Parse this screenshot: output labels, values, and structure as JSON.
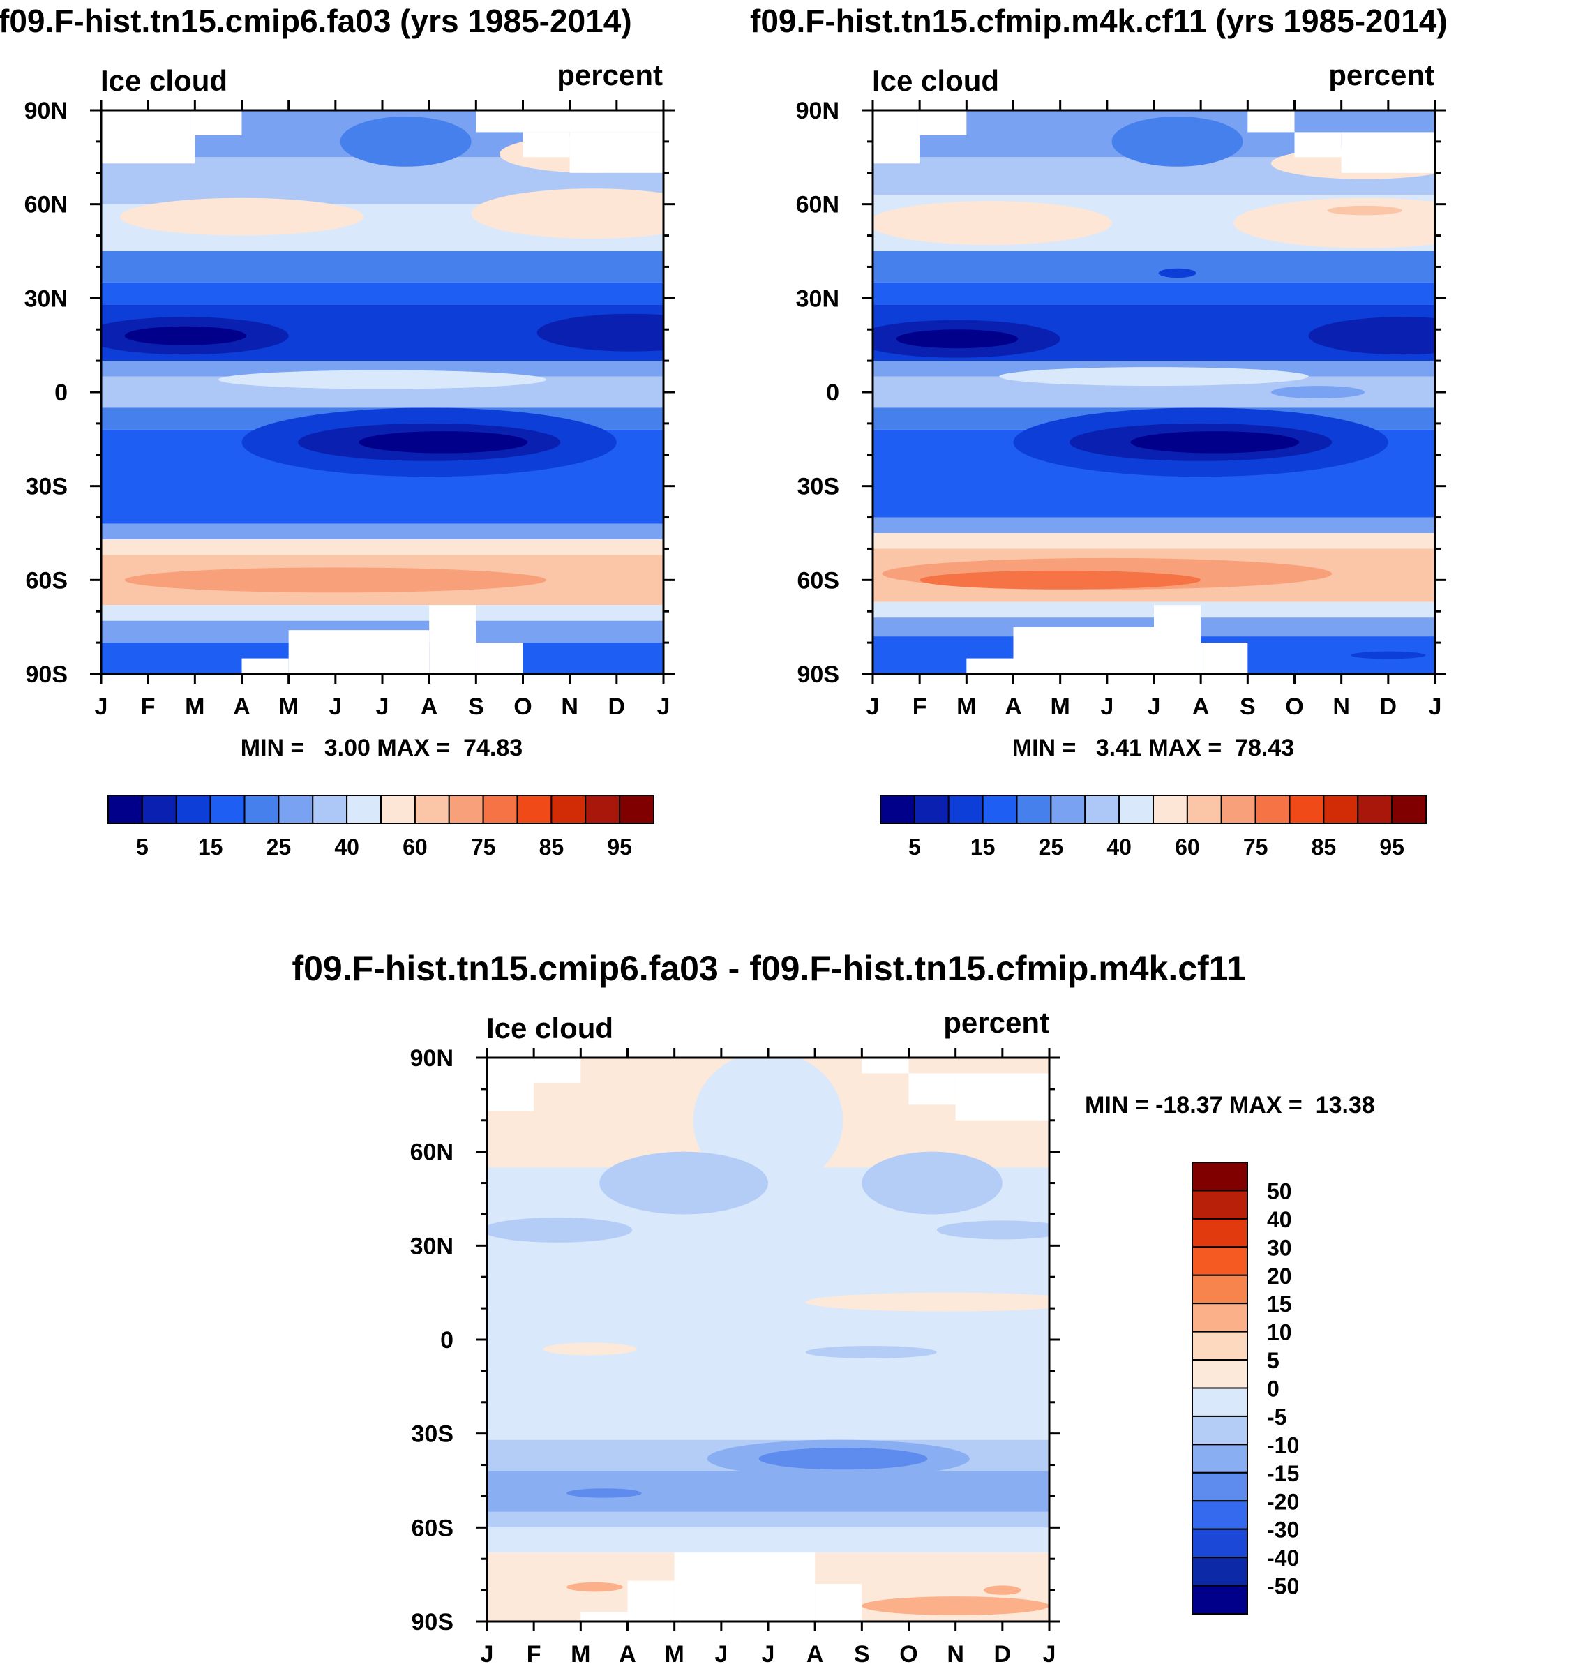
{
  "chart_data": [
    {
      "type": "heatmap",
      "title": "f09.F-hist.tn15.cmip6.fa03 (yrs 1985-2014)",
      "left_label": "Ice cloud",
      "right_label": "percent",
      "x_tick_labels": [
        "J",
        "F",
        "M",
        "A",
        "M",
        "J",
        "J",
        "A",
        "S",
        "O",
        "N",
        "D",
        "J"
      ],
      "y_tick_labels": [
        "90N",
        "60N",
        "30N",
        "0",
        "30S",
        "60S",
        "90S"
      ],
      "min_max_text": "MIN =   3.00 MAX =  74.83",
      "min": 3.0,
      "max": 74.83,
      "colorbar_levels": [
        "5",
        "15",
        "25",
        "40",
        "60",
        "75",
        "85",
        "95"
      ],
      "colorbar_colors": [
        "#00008b",
        "#0a20b0",
        "#0d3fd8",
        "#1f5ef2",
        "#4680ec",
        "#7aa2f2",
        "#adc7f7",
        "#d9e9fb",
        "#fde6d6",
        "#fbc6a8",
        "#f8a07a",
        "#f57344",
        "#ef4a17",
        "#d22c06",
        "#a8170a",
        "#800000"
      ],
      "bands": [
        {
          "lat0": 90,
          "lat1": 75,
          "color": "#7aa2f2"
        },
        {
          "lat0": 75,
          "lat1": 60,
          "color": "#adc7f7"
        },
        {
          "lat0": 60,
          "lat1": 45,
          "color": "#d9e9fb"
        },
        {
          "lat0": 45,
          "lat1": 35,
          "color": "#4680ec"
        },
        {
          "lat0": 35,
          "lat1": 28,
          "color": "#1f5ef2"
        },
        {
          "lat0": 28,
          "lat1": 10,
          "color": "#0d3fd8"
        },
        {
          "lat0": 10,
          "lat1": 5,
          "color": "#7aa2f2"
        },
        {
          "lat0": 5,
          "lat1": -5,
          "color": "#adc7f7"
        },
        {
          "lat0": -5,
          "lat1": -12,
          "color": "#4680ec"
        },
        {
          "lat0": -12,
          "lat1": -42,
          "color": "#1f5ef2"
        },
        {
          "lat0": -42,
          "lat1": -47,
          "color": "#7aa2f2"
        },
        {
          "lat0": -47,
          "lat1": -52,
          "color": "#fde6d6"
        },
        {
          "lat0": -52,
          "lat1": -68,
          "color": "#fbc6a8"
        },
        {
          "lat0": -68,
          "lat1": -73,
          "color": "#d9e9fb"
        },
        {
          "lat0": -73,
          "lat1": -80,
          "color": "#7aa2f2"
        },
        {
          "lat0": -80,
          "lat1": -90,
          "color": "#1f5ef2"
        }
      ],
      "blobs": [
        {
          "month": 3.0,
          "lat": 56,
          "rmon": 2.6,
          "rlat": 6,
          "color": "#fde6d6"
        },
        {
          "month": 10.5,
          "lat": 57,
          "rmon": 2.6,
          "rlat": 8,
          "color": "#fde6d6"
        },
        {
          "month": 10.5,
          "lat": 76,
          "rmon": 2.0,
          "rlat": 6,
          "color": "#fde6d6"
        },
        {
          "month": 6.5,
          "lat": 80,
          "rmon": 1.4,
          "rlat": 8,
          "color": "#4680ec"
        },
        {
          "month": 1.8,
          "lat": 18,
          "rmon": 2.2,
          "rlat": 6,
          "color": "#0a20b0"
        },
        {
          "month": 1.8,
          "lat": 18,
          "rmon": 1.3,
          "rlat": 3,
          "color": "#00008b"
        },
        {
          "month": 11.3,
          "lat": 19,
          "rmon": 2.0,
          "rlat": 6,
          "color": "#0a20b0"
        },
        {
          "month": 6.0,
          "lat": 4,
          "rmon": 3.5,
          "rlat": 3,
          "color": "#d9e9fb"
        },
        {
          "month": 7.0,
          "lat": -16,
          "rmon": 4.0,
          "rlat": 11,
          "color": "#0d3fd8"
        },
        {
          "month": 7.0,
          "lat": -16,
          "rmon": 2.8,
          "rlat": 6,
          "color": "#0a20b0"
        },
        {
          "month": 7.3,
          "lat": -16,
          "rmon": 1.8,
          "rlat": 3.5,
          "color": "#00008b"
        },
        {
          "month": 5.0,
          "lat": -60,
          "rmon": 4.5,
          "rlat": 4,
          "color": "#f8a07a"
        }
      ],
      "masks": [
        {
          "m0": 0,
          "m1": 2,
          "lat0": 90,
          "lat1": 73
        },
        {
          "m0": 2,
          "m1": 3,
          "lat0": 90,
          "lat1": 82
        },
        {
          "m0": 8,
          "m1": 12,
          "lat0": 90,
          "lat1": 83
        },
        {
          "m0": 9,
          "m1": 10,
          "lat0": 83,
          "lat1": 75
        },
        {
          "m0": 10,
          "m1": 12,
          "lat0": 83,
          "lat1": 70
        },
        {
          "m0": 3,
          "m1": 4,
          "lat0": -85,
          "lat1": -90
        },
        {
          "m0": 4,
          "m1": 7,
          "lat0": -76,
          "lat1": -90
        },
        {
          "m0": 7,
          "m1": 8,
          "lat0": -68,
          "lat1": -90
        },
        {
          "m0": 8,
          "m1": 9,
          "lat0": -80,
          "lat1": -90
        }
      ]
    },
    {
      "type": "heatmap",
      "title": "f09.F-hist.tn15.cfmip.m4k.cf11 (yrs 1985-2014)",
      "left_label": "Ice cloud",
      "right_label": "percent",
      "x_tick_labels": [
        "J",
        "F",
        "M",
        "A",
        "M",
        "J",
        "J",
        "A",
        "S",
        "O",
        "N",
        "D",
        "J"
      ],
      "y_tick_labels": [
        "90N",
        "60N",
        "30N",
        "0",
        "30S",
        "60S",
        "90S"
      ],
      "min_max_text": "MIN =   3.41 MAX =  78.43",
      "min": 3.41,
      "max": 78.43,
      "colorbar_levels": [
        "5",
        "15",
        "25",
        "40",
        "60",
        "75",
        "85",
        "95"
      ],
      "colorbar_colors": [
        "#00008b",
        "#0a20b0",
        "#0d3fd8",
        "#1f5ef2",
        "#4680ec",
        "#7aa2f2",
        "#adc7f7",
        "#d9e9fb",
        "#fde6d6",
        "#fbc6a8",
        "#f8a07a",
        "#f57344",
        "#ef4a17",
        "#d22c06",
        "#a8170a",
        "#800000"
      ],
      "bands": [
        {
          "lat0": 90,
          "lat1": 75,
          "color": "#7aa2f2"
        },
        {
          "lat0": 75,
          "lat1": 63,
          "color": "#adc7f7"
        },
        {
          "lat0": 63,
          "lat1": 45,
          "color": "#d9e9fb"
        },
        {
          "lat0": 45,
          "lat1": 35,
          "color": "#4680ec"
        },
        {
          "lat0": 35,
          "lat1": 28,
          "color": "#1f5ef2"
        },
        {
          "lat0": 28,
          "lat1": 10,
          "color": "#0d3fd8"
        },
        {
          "lat0": 10,
          "lat1": 5,
          "color": "#7aa2f2"
        },
        {
          "lat0": 5,
          "lat1": -5,
          "color": "#adc7f7"
        },
        {
          "lat0": -5,
          "lat1": -12,
          "color": "#4680ec"
        },
        {
          "lat0": -12,
          "lat1": -40,
          "color": "#1f5ef2"
        },
        {
          "lat0": -40,
          "lat1": -45,
          "color": "#7aa2f2"
        },
        {
          "lat0": -45,
          "lat1": -50,
          "color": "#fde6d6"
        },
        {
          "lat0": -50,
          "lat1": -67,
          "color": "#fbc6a8"
        },
        {
          "lat0": -67,
          "lat1": -72,
          "color": "#d9e9fb"
        },
        {
          "lat0": -72,
          "lat1": -78,
          "color": "#7aa2f2"
        },
        {
          "lat0": -78,
          "lat1": -90,
          "color": "#1f5ef2"
        }
      ],
      "blobs": [
        {
          "month": 2.5,
          "lat": 54,
          "rmon": 2.6,
          "rlat": 7,
          "color": "#fde6d6"
        },
        {
          "month": 10.5,
          "lat": 54,
          "rmon": 2.8,
          "rlat": 8,
          "color": "#fde6d6"
        },
        {
          "month": 10.5,
          "lat": 73,
          "rmon": 2.0,
          "rlat": 5,
          "color": "#fde6d6"
        },
        {
          "month": 10.5,
          "lat": 58,
          "rmon": 0.8,
          "rlat": 1.5,
          "color": "#fbc6a8"
        },
        {
          "month": 6.5,
          "lat": 80,
          "rmon": 1.4,
          "rlat": 8,
          "color": "#4680ec"
        },
        {
          "month": 6.5,
          "lat": 38,
          "rmon": 0.4,
          "rlat": 1.5,
          "color": "#0d3fd8"
        },
        {
          "month": 1.8,
          "lat": 17,
          "rmon": 2.2,
          "rlat": 6,
          "color": "#0a20b0"
        },
        {
          "month": 1.8,
          "lat": 17,
          "rmon": 1.3,
          "rlat": 3,
          "color": "#00008b"
        },
        {
          "month": 11.3,
          "lat": 18,
          "rmon": 2.0,
          "rlat": 6,
          "color": "#0a20b0"
        },
        {
          "month": 6.0,
          "lat": 5,
          "rmon": 3.3,
          "rlat": 3,
          "color": "#d9e9fb"
        },
        {
          "month": 9.5,
          "lat": 0,
          "rmon": 1.0,
          "rlat": 2,
          "color": "#7aa2f2"
        },
        {
          "month": 7.0,
          "lat": -16,
          "rmon": 4.0,
          "rlat": 11,
          "color": "#0d3fd8"
        },
        {
          "month": 7.0,
          "lat": -16,
          "rmon": 2.8,
          "rlat": 6,
          "color": "#0a20b0"
        },
        {
          "month": 7.3,
          "lat": -16,
          "rmon": 1.8,
          "rlat": 3.5,
          "color": "#00008b"
        },
        {
          "month": 5.0,
          "lat": -58,
          "rmon": 4.8,
          "rlat": 5,
          "color": "#f8a07a"
        },
        {
          "month": 4.0,
          "lat": -60,
          "rmon": 3.0,
          "rlat": 3,
          "color": "#f57344"
        },
        {
          "month": 11.0,
          "lat": -84,
          "rmon": 0.8,
          "rlat": 1.2,
          "color": "#0d3fd8"
        }
      ],
      "masks": [
        {
          "m0": 0,
          "m1": 1,
          "lat0": 90,
          "lat1": 73
        },
        {
          "m0": 1,
          "m1": 2,
          "lat0": 90,
          "lat1": 82
        },
        {
          "m0": 8,
          "m1": 9,
          "lat0": 90,
          "lat1": 83
        },
        {
          "m0": 9,
          "m1": 10,
          "lat0": 83,
          "lat1": 75
        },
        {
          "m0": 10,
          "m1": 12,
          "lat0": 83,
          "lat1": 70
        },
        {
          "m0": 2,
          "m1": 3,
          "lat0": -85,
          "lat1": -90
        },
        {
          "m0": 3,
          "m1": 6,
          "lat0": -75,
          "lat1": -90
        },
        {
          "m0": 6,
          "m1": 7,
          "lat0": -68,
          "lat1": -90
        },
        {
          "m0": 7,
          "m1": 8,
          "lat0": -80,
          "lat1": -90
        }
      ]
    },
    {
      "type": "heatmap",
      "title": "f09.F-hist.tn15.cmip6.fa03 - f09.F-hist.tn15.cfmip.m4k.cf11",
      "left_label": "Ice cloud",
      "right_label": "percent",
      "x_tick_labels": [
        "J",
        "F",
        "M",
        "A",
        "M",
        "J",
        "J",
        "A",
        "S",
        "O",
        "N",
        "D",
        "J"
      ],
      "y_tick_labels": [
        "90N",
        "60N",
        "30N",
        "0",
        "30S",
        "60S",
        "90S"
      ],
      "min_max_text": "MIN = -18.37 MAX =  13.38",
      "min": -18.37,
      "max": 13.38,
      "colorbar_levels": [
        "50",
        "40",
        "30",
        "20",
        "15",
        "10",
        "5",
        "0",
        "-5",
        "-10",
        "-15",
        "-20",
        "-30",
        "-40",
        "-50"
      ],
      "colorbar_colors": [
        "#800000",
        "#b8200a",
        "#e03a0e",
        "#f55a22",
        "#f7834d",
        "#fbb08a",
        "#fdd9c0",
        "#fde9da",
        "#d9e9fb",
        "#b4cdf7",
        "#8aaef2",
        "#5e8cee",
        "#3569ee",
        "#1b48d6",
        "#0c2aa8",
        "#00008b"
      ],
      "bands": [
        {
          "lat0": 90,
          "lat1": 55,
          "color": "#fde9da"
        },
        {
          "lat0": 55,
          "lat1": -32,
          "color": "#d9e9fb"
        },
        {
          "lat0": -32,
          "lat1": -42,
          "color": "#b4cdf7"
        },
        {
          "lat0": -42,
          "lat1": -55,
          "color": "#8aaef2"
        },
        {
          "lat0": -55,
          "lat1": -60,
          "color": "#b4cdf7"
        },
        {
          "lat0": -60,
          "lat1": -68,
          "color": "#d9e9fb"
        },
        {
          "lat0": -68,
          "lat1": -90,
          "color": "#fde9da"
        }
      ],
      "blobs": [
        {
          "month": 6.0,
          "lat": 70,
          "rmon": 1.6,
          "rlat": 22,
          "color": "#d9e9fb"
        },
        {
          "month": 4.2,
          "lat": 50,
          "rmon": 1.8,
          "rlat": 10,
          "color": "#b4cdf7"
        },
        {
          "month": 9.5,
          "lat": 50,
          "rmon": 1.5,
          "rlat": 10,
          "color": "#b4cdf7"
        },
        {
          "month": 1.5,
          "lat": 35,
          "rmon": 1.6,
          "rlat": 4,
          "color": "#b4cdf7"
        },
        {
          "month": 11.0,
          "lat": 35,
          "rmon": 1.4,
          "rlat": 3,
          "color": "#b4cdf7"
        },
        {
          "month": 9.8,
          "lat": 12,
          "rmon": 3.0,
          "rlat": 3,
          "color": "#fde9da"
        },
        {
          "month": 2.2,
          "lat": -3,
          "rmon": 1.0,
          "rlat": 2,
          "color": "#fde9da"
        },
        {
          "month": 8.2,
          "lat": -4,
          "rmon": 1.4,
          "rlat": 2,
          "color": "#b4cdf7"
        },
        {
          "month": 7.5,
          "lat": -38,
          "rmon": 2.8,
          "rlat": 6,
          "color": "#8aaef2"
        },
        {
          "month": 7.6,
          "lat": -38,
          "rmon": 1.8,
          "rlat": 3.5,
          "color": "#5e8cee"
        },
        {
          "month": 2.5,
          "lat": -49,
          "rmon": 0.8,
          "rlat": 1.5,
          "color": "#5e8cee"
        },
        {
          "month": 2.3,
          "lat": -79,
          "rmon": 0.6,
          "rlat": 1.5,
          "color": "#fbb08a"
        },
        {
          "month": 10.0,
          "lat": -85,
          "rmon": 2.0,
          "rlat": 3,
          "color": "#fbb08a"
        },
        {
          "month": 11.0,
          "lat": -80,
          "rmon": 0.4,
          "rlat": 1.5,
          "color": "#fbb08a"
        }
      ],
      "masks": [
        {
          "m0": 0,
          "m1": 1,
          "lat0": 90,
          "lat1": 73
        },
        {
          "m0": 1,
          "m1": 2,
          "lat0": 90,
          "lat1": 82
        },
        {
          "m0": 8,
          "m1": 9,
          "lat0": 90,
          "lat1": 85
        },
        {
          "m0": 9,
          "m1": 10,
          "lat0": 85,
          "lat1": 75
        },
        {
          "m0": 10,
          "m1": 12,
          "lat0": 85,
          "lat1": 70
        },
        {
          "m0": 2,
          "m1": 3,
          "lat0": -87,
          "lat1": -90
        },
        {
          "m0": 3,
          "m1": 4,
          "lat0": -77,
          "lat1": -90
        },
        {
          "m0": 4,
          "m1": 7,
          "lat0": -68,
          "lat1": -90
        },
        {
          "m0": 7,
          "m1": 8,
          "lat0": -78,
          "lat1": -90
        }
      ]
    }
  ]
}
